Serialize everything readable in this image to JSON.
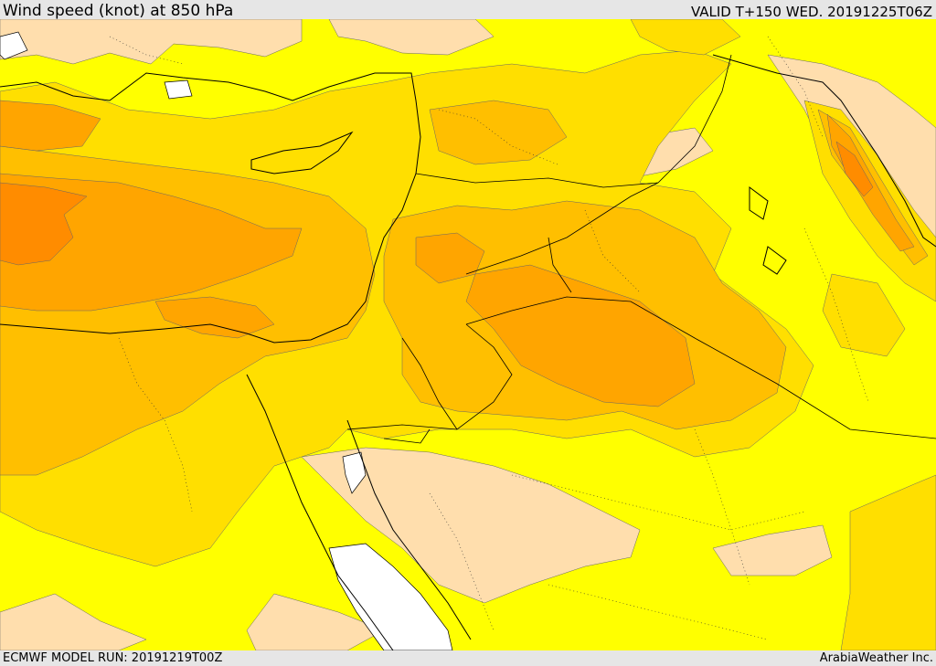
{
  "header": {
    "title": "Wind speed (knot) at 850 hPa",
    "valid_time": "VALID T+150 WED. 20191225T06Z"
  },
  "footer": {
    "model_run": "ECMWF MODEL RUN: 20191219T00Z",
    "credit": "ArabiaWeather Inc."
  },
  "map": {
    "variable": "wind speed",
    "level": "850 hPa",
    "unit": "knot",
    "fill_colors": [
      "#ffdead",
      "#ffff00",
      "#ffdf00",
      "#ffbf00",
      "#ffa500",
      "#ff8c00",
      "#ff7000"
    ]
  }
}
